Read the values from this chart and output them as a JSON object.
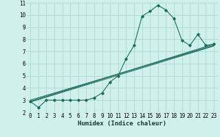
{
  "xlabel": "Humidex (Indice chaleur)",
  "bg_color": "#cff0eb",
  "grid_color": "#a8d8d0",
  "line_color": "#1a6b5a",
  "xlim": [
    -0.5,
    23.5
  ],
  "ylim": [
    2,
    11
  ],
  "xticks": [
    0,
    1,
    2,
    3,
    4,
    5,
    6,
    7,
    8,
    9,
    10,
    11,
    12,
    13,
    14,
    15,
    16,
    17,
    18,
    19,
    20,
    21,
    22,
    23
  ],
  "yticks": [
    2,
    3,
    4,
    5,
    6,
    7,
    8,
    9,
    10,
    11
  ],
  "line1_x": [
    0,
    1,
    2,
    3,
    4,
    5,
    6,
    7,
    8,
    9,
    10,
    11,
    12,
    13,
    14,
    15,
    16,
    17,
    18,
    19,
    20,
    21,
    22,
    23
  ],
  "line1_y": [
    2.9,
    2.4,
    3.0,
    3.0,
    3.0,
    3.0,
    3.0,
    3.0,
    3.2,
    3.6,
    4.5,
    5.0,
    6.4,
    7.5,
    9.9,
    10.3,
    10.8,
    10.4,
    9.7,
    7.9,
    7.5,
    8.4,
    7.5,
    7.6
  ],
  "line2_x": [
    0,
    23
  ],
  "line2_y": [
    2.9,
    7.6
  ],
  "line3_x": [
    0,
    23
  ],
  "line3_y": [
    2.85,
    7.45
  ],
  "line4_x": [
    0,
    23
  ],
  "line4_y": [
    3.0,
    7.5
  ],
  "tick_fontsize": 5.5,
  "xlabel_fontsize": 6.5
}
